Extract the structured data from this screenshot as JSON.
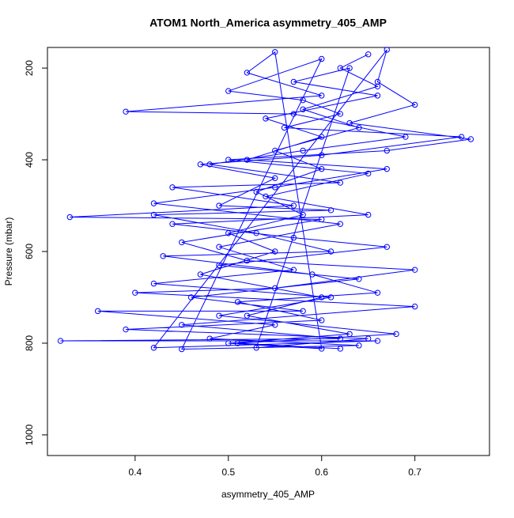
{
  "chart_data": {
    "type": "line",
    "markers": true,
    "title": "ATOM1 North_America asymmetry_405_AMP",
    "x_label": "asymmetry_405_AMP",
    "y_label": "Pressure (mbar)",
    "color": "#0000ff",
    "xlim": [
      0.306,
      0.78
    ],
    "ylim": [
      1045,
      155
    ],
    "xticks": [
      0.4,
      0.5,
      0.6,
      0.7
    ],
    "yticks": [
      200,
      400,
      600,
      800,
      1000
    ],
    "grid": false,
    "x": [
      0.65,
      0.62,
      0.66,
      0.58,
      0.64,
      0.55,
      0.6,
      0.53,
      0.58,
      0.5,
      0.55,
      0.47,
      0.6,
      0.52,
      0.63,
      0.5,
      0.6,
      0.55,
      0.52,
      0.6,
      0.39,
      0.57,
      0.69,
      0.58,
      0.48,
      0.62,
      0.44,
      0.57,
      0.33,
      0.6,
      0.45,
      0.52,
      0.7,
      0.55,
      0.4,
      0.7,
      0.45,
      0.62,
      0.32,
      0.66,
      0.42,
      0.67,
      0.66,
      0.7,
      0.63,
      0.76,
      0.67,
      0.5,
      0.65,
      0.54,
      0.65,
      0.44,
      0.57,
      0.67,
      0.49,
      0.64,
      0.46,
      0.58,
      0.36,
      0.55,
      0.48,
      0.64,
      0.45,
      0.6,
      0.5,
      0.58,
      0.62,
      0.56,
      0.75,
      0.6,
      0.47,
      0.55,
      0.49,
      0.61,
      0.42,
      0.53,
      0.61,
      0.43,
      0.59,
      0.66,
      0.51,
      0.6,
      0.39,
      0.65,
      0.53,
      0.63,
      0.57,
      0.66,
      0.54,
      0.6,
      0.52,
      0.67,
      0.55,
      0.42,
      0.62,
      0.49,
      0.57,
      0.42,
      0.61,
      0.49,
      0.68,
      0.51,
      0.62
    ],
    "values": [
      170,
      200,
      240,
      290,
      330,
      380,
      420,
      470,
      520,
      560,
      600,
      650,
      700,
      740,
      780,
      800,
      812,
      165,
      210,
      260,
      295,
      300,
      350,
      380,
      410,
      450,
      460,
      500,
      525,
      530,
      580,
      620,
      640,
      680,
      690,
      720,
      760,
      790,
      795,
      795,
      810,
      160,
      230,
      280,
      320,
      355,
      380,
      400,
      430,
      480,
      520,
      540,
      570,
      590,
      630,
      660,
      700,
      730,
      730,
      760,
      790,
      805,
      813,
      180,
      250,
      270,
      300,
      330,
      350,
      390,
      410,
      440,
      500,
      510,
      520,
      560,
      600,
      610,
      650,
      690,
      710,
      750,
      770,
      790,
      810,
      200,
      230,
      260,
      310,
      350,
      400,
      420,
      460,
      495,
      540,
      590,
      640,
      670,
      700,
      740,
      780,
      800,
      812
    ]
  }
}
